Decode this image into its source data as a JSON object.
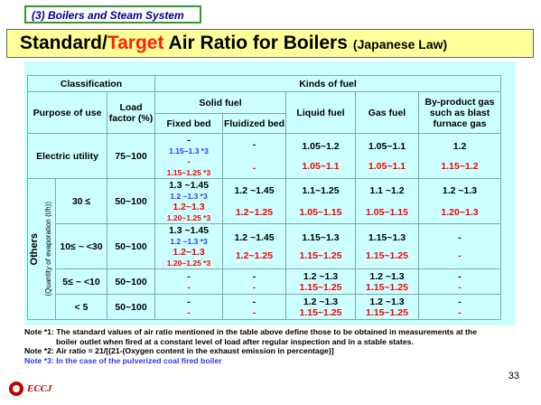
{
  "section_tag": "(3) Boilers and Steam System",
  "title": {
    "pre": "Standard/",
    "target": "Target",
    "post": " Air Ratio for Boilers",
    "law": "(Japanese Law)"
  },
  "headers": {
    "classification": "Classification",
    "kinds_of_fuel": "Kinds of fuel",
    "purpose_of_use": "Purpose of use",
    "load_factor": "Load factor (%)",
    "solid_fuel": "Solid fuel",
    "fixed_bed": "Fixed bed",
    "fluidized_bed": "Fluidized bed",
    "liquid_fuel": "Liquid fuel",
    "gas_fuel": "Gas fuel",
    "byproduct_gas": "By-product gas such as blast furnace gas"
  },
  "others_label": "Others",
  "evaporation_label": "(Quantity of evaporation (t/h))",
  "rows": [
    {
      "purpose": "Electric utility",
      "load": "75~100",
      "fixed_std": "-",
      "fixed_std_note": "1.15~1.3 *3",
      "fixed_tgt": "-",
      "fixed_tgt_note": "1.15~1.25 *3",
      "fluid_std": "-",
      "fluid_tgt": "-",
      "liquid_std": "1.05~1.2",
      "liquid_tgt": "1.05~1.1",
      "gas_std": "1.05~1.1",
      "gas_tgt": "1.05~1.1",
      "bp_std": "1.2",
      "bp_tgt": "1.15~1.2"
    },
    {
      "purpose": "30 ≤",
      "load": "50~100",
      "fixed_std": "1.3 ~1.45",
      "fixed_std_note": "1.2 ~1.3 *3",
      "fixed_tgt": "1.2~1.3",
      "fixed_tgt_note": "1.20~1.25 *3",
      "fluid_std": "1.2 ~1.45",
      "fluid_tgt": "1.2~1.25",
      "liquid_std": "1.1~1.25",
      "liquid_tgt": "1.05~1.15",
      "gas_std": "1.1 ~1.2",
      "gas_tgt": "1.05~1.15",
      "bp_std": "1.2 ~1.3",
      "bp_tgt": "1.20~1.3"
    },
    {
      "purpose": "10≤ ~ <30",
      "load": "50~100",
      "fixed_std": "1.3 ~1.45",
      "fixed_std_note": "1.2 ~1.3 *3",
      "fixed_tgt": "1.2~1.3",
      "fixed_tgt_note": "1.20~1.25 *3",
      "fluid_std": "1.2 ~1.45",
      "fluid_tgt": "1.2~1.25",
      "liquid_std": "1.15~1.3",
      "liquid_tgt": "1.15~1.25",
      "gas_std": "1.15~1.3",
      "gas_tgt": "1.15~1.25",
      "bp_std": "-",
      "bp_tgt": "-"
    },
    {
      "purpose": "5≤ ~ <10",
      "load": "50~100",
      "fixed_std": "-",
      "fixed_tgt": "-",
      "fluid_std": "-",
      "fluid_tgt": "-",
      "liquid_std": "1.2 ~1.3",
      "liquid_tgt": "1.15~1.25",
      "gas_std": "1.2 ~1.3",
      "gas_tgt": "1.15~1.25",
      "bp_std": "-",
      "bp_tgt": "-"
    },
    {
      "purpose": "< 5",
      "load": "50~100",
      "fixed_std": "-",
      "fixed_tgt": "-",
      "fluid_std": "-",
      "fluid_tgt": "-",
      "liquid_std": "1.2 ~1.3",
      "liquid_tgt": "1.15~1.25",
      "gas_std": "1.2 ~1.3",
      "gas_tgt": "1.15~1.25",
      "bp_std": "-",
      "bp_tgt": "-"
    }
  ],
  "notes": {
    "n1a": "Note *1: The standard values of air ratio mentioned in the table above define those to be obtained in measurements at the",
    "n1b": "boiler outlet when fired at a constant level of load after regular inspection and in a stable states.",
    "n2": "Note *2: Air ratio = 21/[(21-(Oxygen content in the exhaust emission in percentage)]",
    "n3": "Note *3: In the case of the pulverized coal fired boiler"
  },
  "page_number": "33",
  "logo_text": "ECCJ",
  "colors": {
    "title_bg": "#ffff99",
    "table_bg": "#ccffff",
    "target_red": "#ff0000",
    "note3_blue": "#3333ff"
  }
}
